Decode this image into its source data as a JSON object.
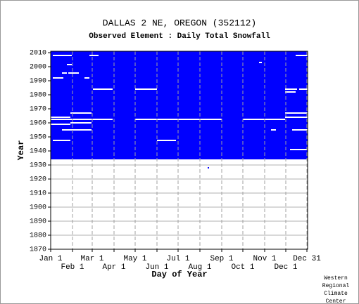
{
  "chart_data": {
    "type": "coverage",
    "title": "DALLAS 2 NE, OREGON   (352112)",
    "subtitle": "Observed Element : Daily Total Snowfall",
    "x_label": "Day of Year",
    "y_label": "Year",
    "credit": [
      "Western",
      "Regional",
      "Climate",
      "Center"
    ],
    "color": "#0000ff",
    "xlim": [
      1,
      366
    ],
    "ylim": [
      1870,
      2011
    ],
    "xticks": [
      {
        "value": 1,
        "label": "Jan 1"
      },
      {
        "value": 32,
        "label": "Feb 1"
      },
      {
        "value": 60,
        "label": "Mar 1"
      },
      {
        "value": 91,
        "label": "Apr 1"
      },
      {
        "value": 121,
        "label": "May 1"
      },
      {
        "value": 152,
        "label": "Jun 1"
      },
      {
        "value": 182,
        "label": "Jul 1"
      },
      {
        "value": 213,
        "label": "Aug 1"
      },
      {
        "value": 244,
        "label": "Sep 1"
      },
      {
        "value": 274,
        "label": "Oct 1"
      },
      {
        "value": 305,
        "label": "Nov 1"
      },
      {
        "value": 335,
        "label": "Dec 1"
      },
      {
        "value": 365,
        "label": "Dec 31"
      }
    ],
    "yticks": [
      1870,
      1880,
      1890,
      1900,
      1910,
      1920,
      1930,
      1940,
      1950,
      1960,
      1970,
      1980,
      1990,
      2000,
      2010
    ],
    "grid": true,
    "blocks": [
      [
        1,
        366,
        1934,
        2011
      ]
    ],
    "points": [
      [
        225,
        1928
      ]
    ],
    "gaps": [
      [
        2008,
        4,
        31
      ],
      [
        2008,
        56,
        69
      ],
      [
        2008,
        349,
        366
      ],
      [
        2003,
        297,
        301
      ],
      [
        2001.5,
        24,
        31
      ],
      [
        1995.5,
        17,
        24
      ],
      [
        1995.5,
        26,
        41
      ],
      [
        1992,
        4,
        19
      ],
      [
        1992,
        49,
        56
      ],
      [
        1984,
        61,
        89
      ],
      [
        1984,
        121,
        152
      ],
      [
        1984,
        334,
        351
      ],
      [
        1984,
        354,
        366
      ],
      [
        1982,
        334,
        349
      ],
      [
        1967,
        29,
        59
      ],
      [
        1967,
        334,
        366
      ],
      [
        1964,
        1,
        29
      ],
      [
        1964,
        334,
        366
      ],
      [
        1962.5,
        1,
        89
      ],
      [
        1962.5,
        121,
        244
      ],
      [
        1962.5,
        274,
        334
      ],
      [
        1960,
        29,
        59
      ],
      [
        1959,
        1,
        29
      ],
      [
        1955,
        17,
        59
      ],
      [
        1955,
        314,
        321
      ],
      [
        1955,
        344,
        366
      ],
      [
        1947.5,
        4,
        29
      ],
      [
        1947.5,
        152,
        179
      ],
      [
        1941,
        341,
        366
      ]
    ]
  }
}
